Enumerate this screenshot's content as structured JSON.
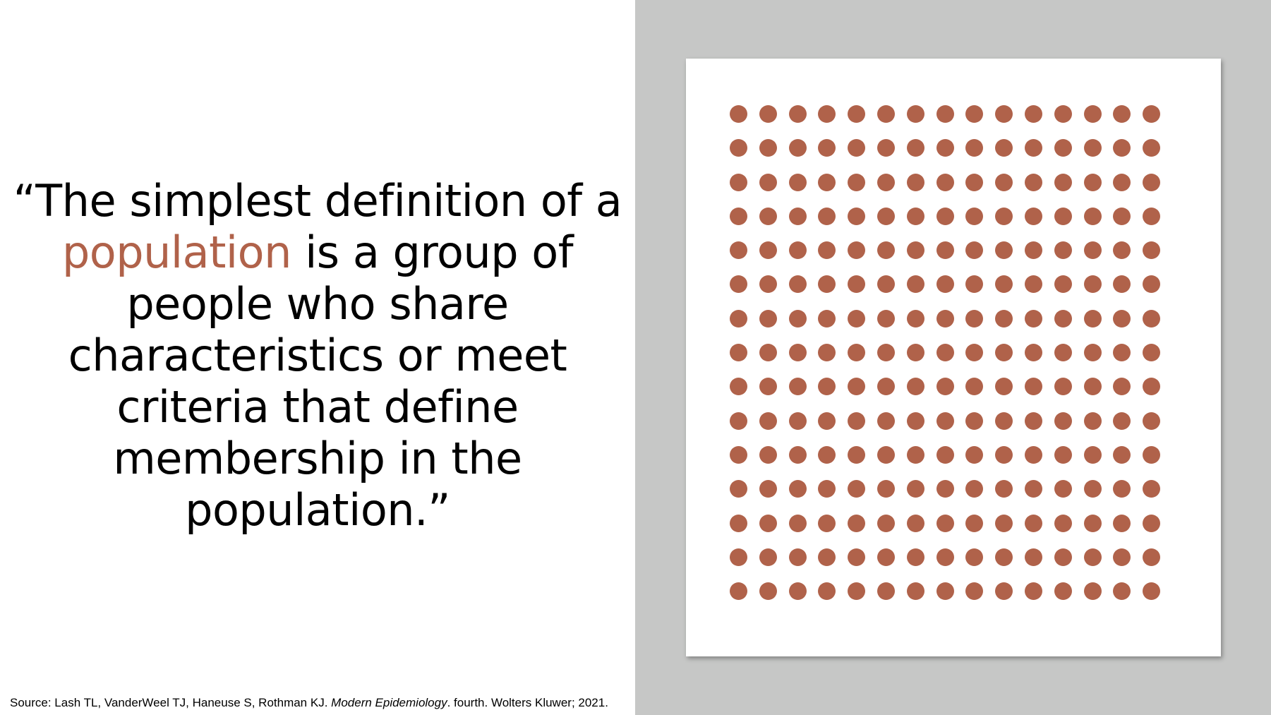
{
  "colors": {
    "accent": "#b0624a",
    "panel_background": "#c6c7c6",
    "card_background": "#ffffff",
    "text": "#000000"
  },
  "quote": {
    "part1": "“The simplest definition of a",
    "highlight": "population",
    "part2": "is a group of people who share characteristics or meet criteria that define membership in the population.”"
  },
  "figure": {
    "rows": 15,
    "columns": 15,
    "dot_color": "#b0624a"
  },
  "source": {
    "prefix": "Source: Lash TL, VanderWeel TJ, Haneuse S, Rothman KJ.",
    "title": "Modern Epidemiology",
    "suffix": ". fourth. Wolters Kluwer; 2021."
  }
}
